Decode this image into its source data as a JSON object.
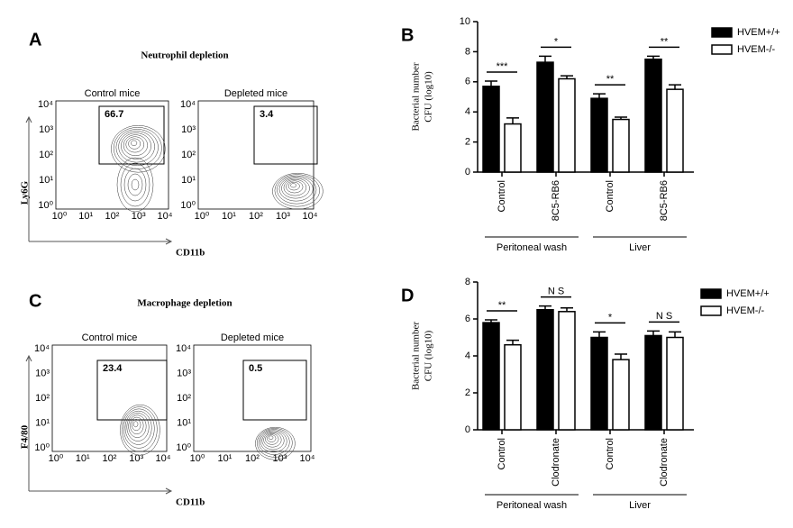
{
  "flow_panels": [
    {
      "label": "A",
      "title": "Neutrophil depletion",
      "xlabel": "CD11b",
      "ylabel": "Ly6G",
      "ticks": [
        "10⁰",
        "10¹",
        "10²",
        "10³",
        "10⁴"
      ],
      "plots": [
        {
          "title": "Control mice",
          "gate": "66.7"
        },
        {
          "title": "Depleted mice",
          "gate": "3.4"
        }
      ]
    },
    {
      "label": "C",
      "title": "Macrophage depletion",
      "xlabel": "CD11b",
      "ylabel": "F4/80",
      "ticks": [
        "10⁰",
        "10¹",
        "10²",
        "10³",
        "10⁴"
      ],
      "plots": [
        {
          "title": "Control mice",
          "gate": "23.4"
        },
        {
          "title": "Depleted mice",
          "gate": "0.5"
        }
      ]
    }
  ],
  "chart_data": [
    {
      "type": "bar",
      "label": "B",
      "ylabel": [
        "Bacterial number",
        "CFU (log10)"
      ],
      "categories": [
        "Control",
        "8C5-RB6",
        "Control",
        "8C5-RB6"
      ],
      "groups": [
        "Peritoneal wash",
        "Liver"
      ],
      "ylim": [
        0,
        10
      ],
      "yticks": [
        0,
        2,
        4,
        6,
        8,
        10
      ],
      "series": [
        {
          "name": "HVEM+/+",
          "color": "#000000",
          "values": [
            5.7,
            7.3,
            4.9,
            7.5
          ],
          "errors": [
            0.35,
            0.4,
            0.3,
            0.2
          ]
        },
        {
          "name": "HVEM-/-",
          "color": "#ffffff",
          "values": [
            3.2,
            6.2,
            3.5,
            5.5
          ],
          "errors": [
            0.4,
            0.2,
            0.15,
            0.3
          ]
        }
      ],
      "annotations": [
        "***",
        "*",
        "**",
        "**"
      ]
    },
    {
      "type": "bar",
      "label": "D",
      "ylabel": [
        "Bacterial number",
        "CFU (log10)"
      ],
      "categories": [
        "Control",
        "Clodronate",
        "Control",
        "Clodronate"
      ],
      "groups": [
        "Peritoneal wash",
        "Liver"
      ],
      "ylim": [
        0,
        8
      ],
      "yticks": [
        0,
        2,
        4,
        6,
        8
      ],
      "series": [
        {
          "name": "HVEM+/+",
          "color": "#000000",
          "values": [
            5.8,
            6.5,
            5.0,
            5.1
          ],
          "errors": [
            0.15,
            0.2,
            0.3,
            0.25
          ]
        },
        {
          "name": "HVEM-/-",
          "color": "#ffffff",
          "values": [
            4.6,
            6.4,
            3.8,
            5.0
          ],
          "errors": [
            0.25,
            0.2,
            0.3,
            0.3
          ]
        }
      ],
      "annotations": [
        "**",
        "N S",
        "*",
        "N S"
      ]
    }
  ]
}
